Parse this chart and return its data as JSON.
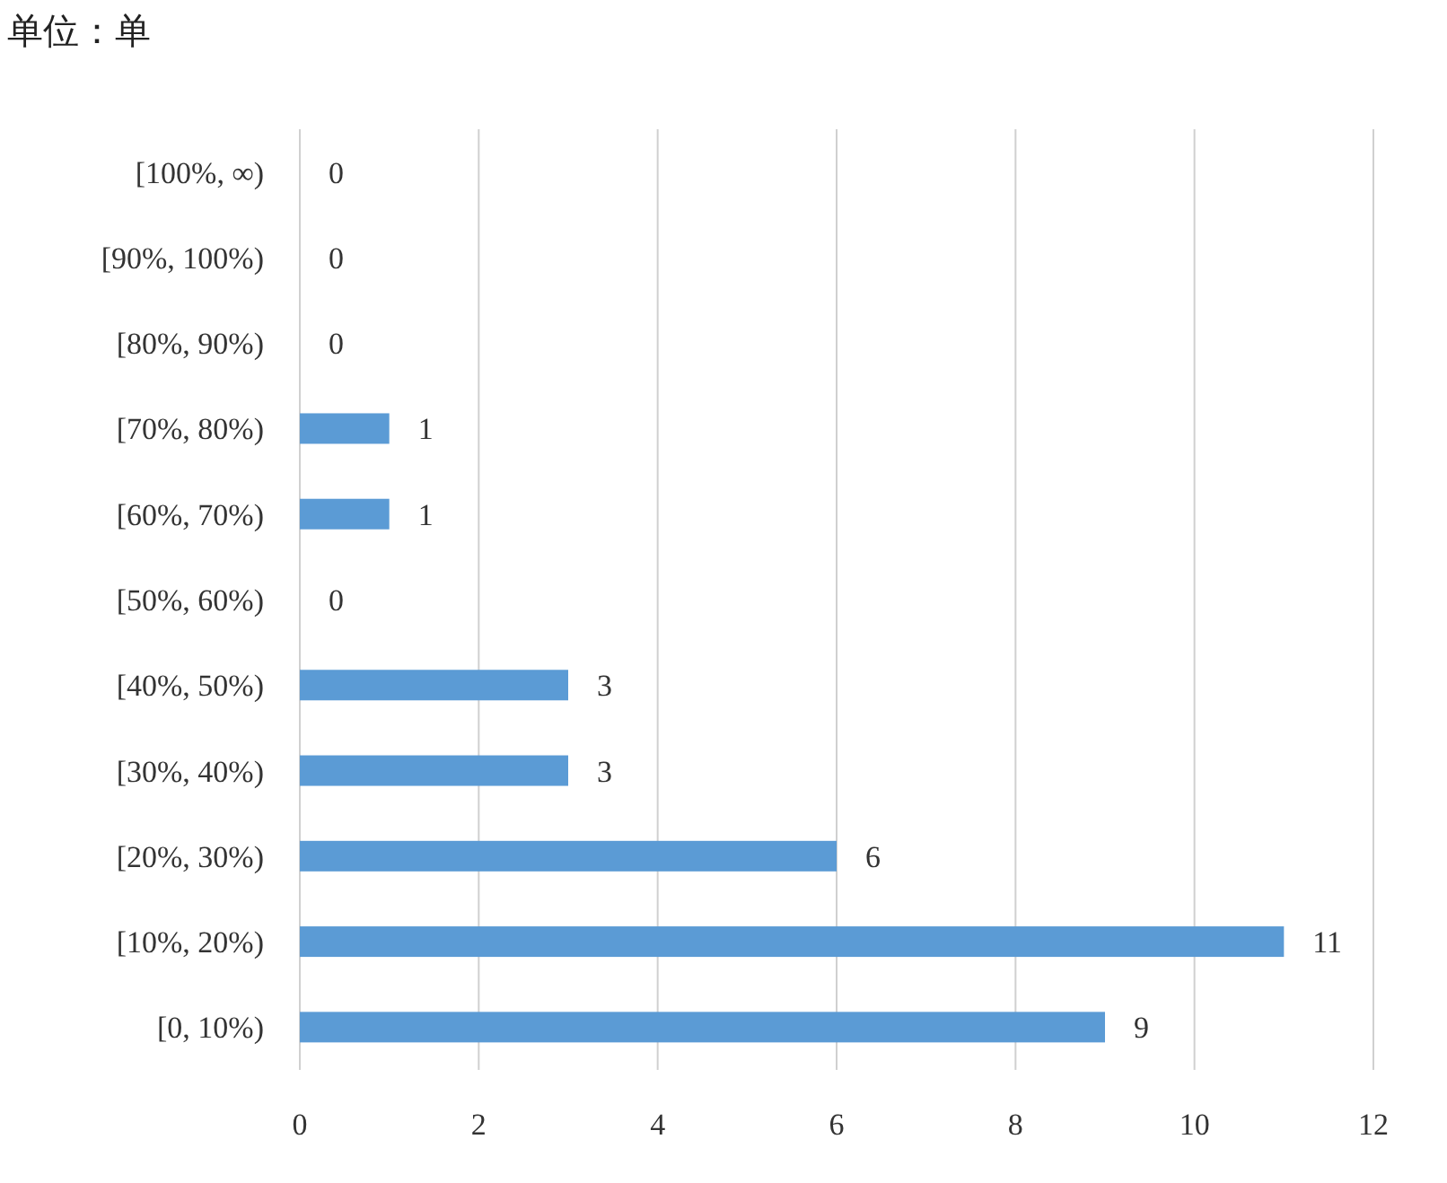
{
  "chart_data": {
    "type": "bar",
    "orientation": "horizontal",
    "title": "单位：单",
    "categories": [
      "[100%, ∞)",
      "[90%, 100%)",
      "[80%, 90%)",
      "[70%, 80%)",
      "[60%, 70%)",
      "[50%, 60%)",
      "[40%, 50%)",
      "[30%, 40%)",
      "[20%, 30%)",
      "[10%, 20%)",
      "[0, 10%)"
    ],
    "values": [
      0,
      0,
      0,
      1,
      1,
      0,
      3,
      3,
      6,
      11,
      9
    ],
    "color": "#5b9bd5",
    "xlim": [
      0,
      12
    ],
    "xticks": [
      0,
      2,
      4,
      6,
      8,
      10,
      12
    ],
    "grid": "x",
    "data_labels": true
  }
}
